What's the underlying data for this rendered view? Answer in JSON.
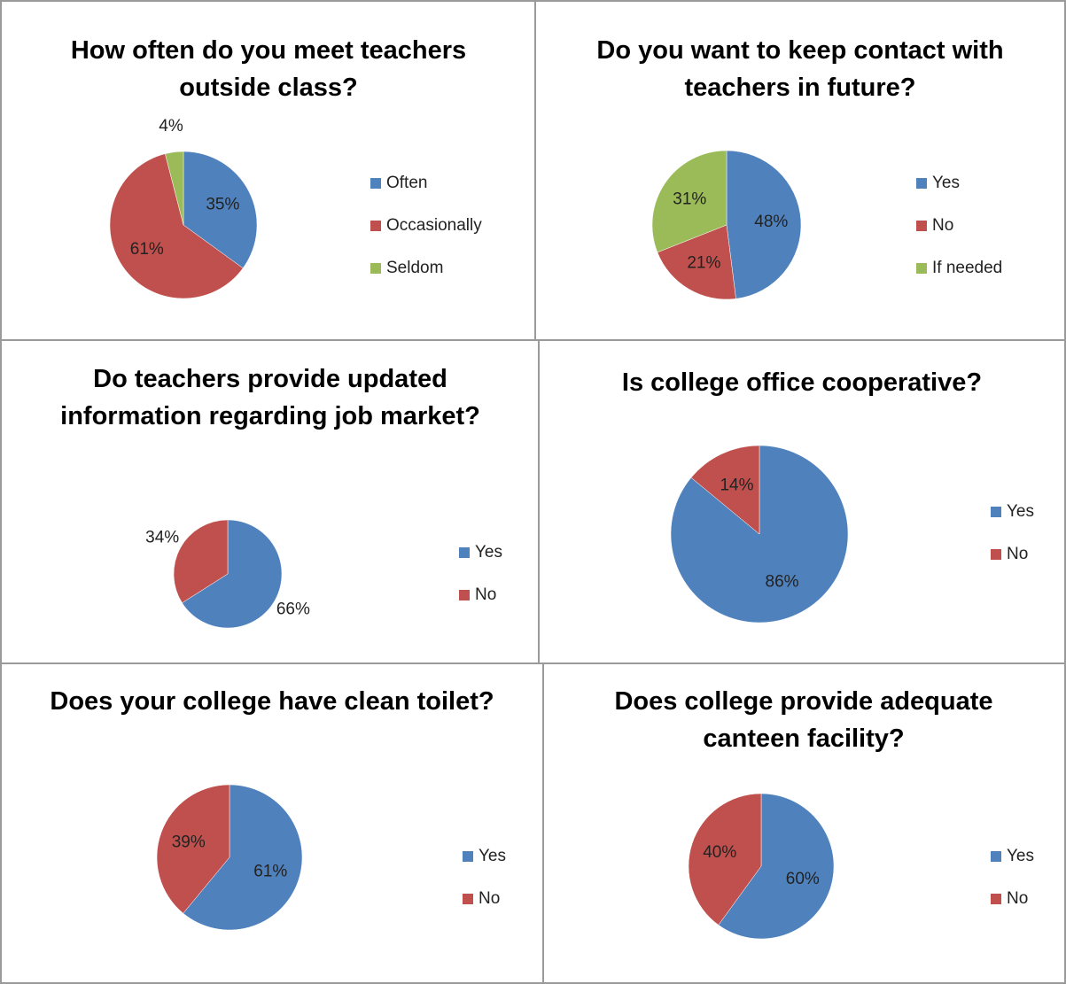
{
  "chart_data": [
    {
      "type": "pie",
      "title": "How often do you meet teachers outside class?",
      "categories": [
        "Often",
        "Occasionally",
        "Seldom"
      ],
      "values": [
        35,
        61,
        4
      ],
      "value_labels": [
        "35%",
        "61%",
        "4%"
      ],
      "colors": [
        "#4f81bd",
        "#c0504d",
        "#9bbb59"
      ]
    },
    {
      "type": "pie",
      "title": "Do you want to keep contact with teachers in future?",
      "categories": [
        "Yes",
        "No",
        "If needed"
      ],
      "values": [
        48,
        21,
        31
      ],
      "value_labels": [
        "48%",
        "21%",
        "31%"
      ],
      "colors": [
        "#4f81bd",
        "#c0504d",
        "#9bbb59"
      ]
    },
    {
      "type": "pie",
      "title": "Do teachers provide updated information regarding job market?",
      "categories": [
        "Yes",
        "No"
      ],
      "values": [
        66,
        34
      ],
      "value_labels": [
        "66%",
        "34%"
      ],
      "colors": [
        "#4f81bd",
        "#c0504d"
      ]
    },
    {
      "type": "pie",
      "title": "Is college office cooperative?",
      "categories": [
        "Yes",
        "No"
      ],
      "values": [
        86,
        14
      ],
      "value_labels": [
        "86%",
        "14%"
      ],
      "colors": [
        "#4f81bd",
        "#c0504d"
      ]
    },
    {
      "type": "pie",
      "title": "Does your college have clean toilet?",
      "categories": [
        "Yes",
        "No"
      ],
      "values": [
        61,
        39
      ],
      "value_labels": [
        "61%",
        "39%"
      ],
      "colors": [
        "#4f81bd",
        "#c0504d"
      ]
    },
    {
      "type": "pie",
      "title": "Does college provide adequate canteen facility?",
      "categories": [
        "Yes",
        "No"
      ],
      "values": [
        60,
        40
      ],
      "value_labels": [
        "60%",
        "40%"
      ],
      "colors": [
        "#4f81bd",
        "#c0504d"
      ]
    }
  ]
}
